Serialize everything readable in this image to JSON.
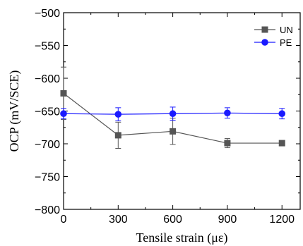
{
  "chart_data": {
    "type": "line",
    "xlabel": "Tensile strain (με)",
    "ylabel": "OCP (mV/SCE)",
    "xlim": [
      0,
      1300
    ],
    "ylim": [
      -800,
      -500
    ],
    "xticks": [
      0,
      300,
      600,
      900,
      1200
    ],
    "yticks": [
      -800,
      -750,
      -700,
      -650,
      -600,
      -550,
      -500
    ],
    "legend_position": "top-right",
    "grid": false,
    "series": [
      {
        "name": "UN",
        "color": "#555555",
        "marker": "square",
        "x": [
          0,
          300,
          600,
          900,
          1200
        ],
        "y": [
          -623,
          -687,
          -681,
          -699,
          -699
        ],
        "err": [
          40,
          20,
          20,
          7,
          3
        ]
      },
      {
        "name": "PE",
        "color": "#1a1aff",
        "marker": "circle",
        "x": [
          0,
          300,
          600,
          900,
          1200
        ],
        "y": [
          -654,
          -655,
          -654,
          -653,
          -654
        ],
        "err": [
          8,
          10,
          10,
          8,
          8
        ]
      }
    ]
  }
}
